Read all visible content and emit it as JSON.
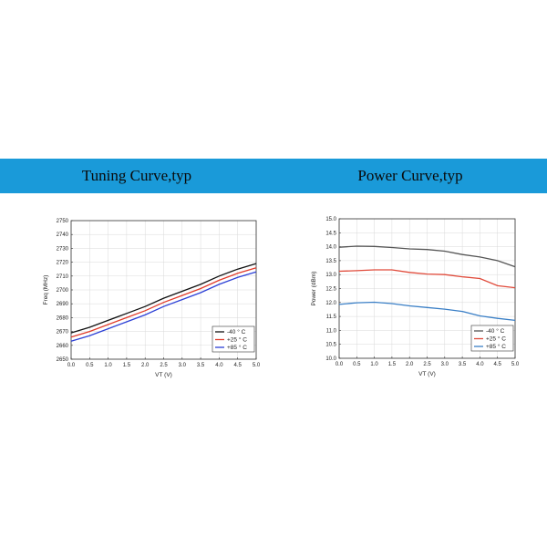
{
  "banner": {
    "left_title": "Tuning Curve,typ",
    "right_title": "Power Curve,typ",
    "color": "#1a9ad9"
  },
  "chart_data": [
    {
      "type": "line",
      "xlabel": "VT (V)",
      "ylabel": "Freq (MHz)",
      "xlim": [
        0.0,
        5.0
      ],
      "ylim": [
        2650,
        2750
      ],
      "xticks": [
        "0.0",
        "0.5",
        "1.0",
        "1.5",
        "2.0",
        "2.5",
        "3.0",
        "3.5",
        "4.0",
        "4.5",
        "5.0"
      ],
      "yticks": [
        "2650",
        "2660",
        "2670",
        "2680",
        "2690",
        "2700",
        "2710",
        "2720",
        "2730",
        "2740",
        "2750"
      ],
      "grid": true,
      "legend_position": "lower-right",
      "x": [
        0.0,
        0.5,
        1.0,
        1.5,
        2.0,
        2.5,
        3.0,
        3.5,
        4.0,
        4.5,
        5.0
      ],
      "series": [
        {
          "name": "-40 ° C",
          "color": "#111111",
          "values": [
            2669,
            2673,
            2678,
            2683,
            2688,
            2694,
            2699,
            2704,
            2710,
            2715,
            2719
          ]
        },
        {
          "name": "+25 ° C",
          "color": "#e03a2a",
          "values": [
            2666,
            2670,
            2675,
            2680,
            2685,
            2691,
            2696,
            2701,
            2707,
            2712,
            2716
          ]
        },
        {
          "name": "+85 ° C",
          "color": "#2b3fd6",
          "values": [
            2663,
            2667,
            2672,
            2677,
            2682,
            2688,
            2693,
            2698,
            2704,
            2709,
            2713
          ]
        }
      ]
    },
    {
      "type": "line",
      "xlabel": "VT (V)",
      "ylabel": "Power (dBm)",
      "xlim": [
        0.0,
        5.0
      ],
      "ylim": [
        10.0,
        15.0
      ],
      "xticks": [
        "0.0",
        "0.5",
        "1.0",
        "1.5",
        "2.0",
        "2.5",
        "3.0",
        "3.5",
        "4.0",
        "4.5",
        "5.0"
      ],
      "yticks": [
        "10.0",
        "10.5",
        "11.0",
        "11.5",
        "12.0",
        "12.5",
        "13.0",
        "13.5",
        "14.0",
        "14.5",
        "15.0"
      ],
      "grid": true,
      "legend_position": "lower-right",
      "x": [
        0.0,
        0.5,
        1.0,
        1.5,
        2.0,
        2.5,
        3.0,
        3.5,
        4.0,
        4.5,
        5.0
      ],
      "series": [
        {
          "name": "-40 ° C",
          "color": "#555555",
          "values": [
            13.98,
            14.02,
            14.01,
            13.97,
            13.92,
            13.9,
            13.84,
            13.72,
            13.63,
            13.5,
            13.28
          ]
        },
        {
          "name": "+25 ° C",
          "color": "#e04a3a",
          "values": [
            13.12,
            13.14,
            13.17,
            13.17,
            13.08,
            13.02,
            13.0,
            12.92,
            12.86,
            12.6,
            12.53
          ]
        },
        {
          "name": "+85 ° C",
          "color": "#3a7fc6",
          "values": [
            11.93,
            11.99,
            12.01,
            11.96,
            11.88,
            11.82,
            11.76,
            11.68,
            11.52,
            11.43,
            11.36
          ]
        }
      ]
    }
  ]
}
